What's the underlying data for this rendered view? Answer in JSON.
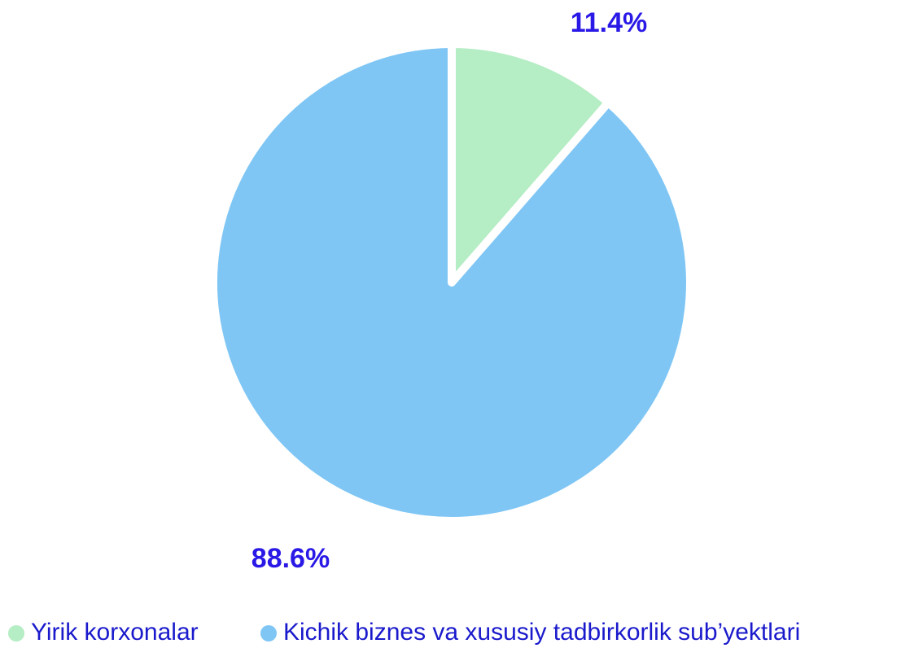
{
  "chart_data": {
    "type": "pie",
    "categories": [
      "Yirik korxonalar",
      "Kichik biznes va xususiy tadbirkorlik sub’yektlari"
    ],
    "values": [
      11.4,
      88.6
    ],
    "value_labels": [
      "11.4%",
      "88.6%"
    ],
    "colors": [
      "#b5edc4",
      "#7fc6f5"
    ]
  }
}
